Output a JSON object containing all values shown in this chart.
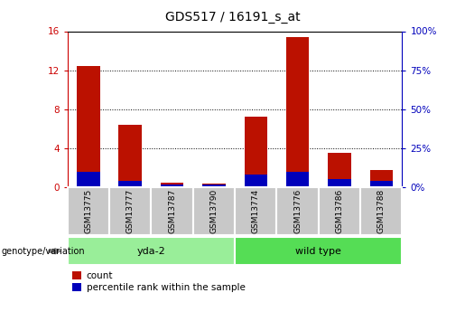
{
  "title": "GDS517 / 16191_s_at",
  "samples": [
    "GSM13775",
    "GSM13777",
    "GSM13787",
    "GSM13790",
    "GSM13774",
    "GSM13776",
    "GSM13786",
    "GSM13788"
  ],
  "count_values": [
    12.4,
    6.4,
    0.5,
    0.4,
    7.2,
    15.4,
    3.5,
    1.8
  ],
  "percentile_values": [
    10.0,
    4.0,
    2.0,
    1.5,
    8.0,
    10.0,
    5.0,
    4.0
  ],
  "groups": [
    {
      "label": "yda-2",
      "start": 0,
      "end": 4,
      "color": "#99EE99"
    },
    {
      "label": "wild type",
      "start": 4,
      "end": 8,
      "color": "#55DD55"
    }
  ],
  "bar_width": 0.55,
  "ylim_left": [
    0,
    16
  ],
  "ylim_right": [
    0,
    100
  ],
  "yticks_left": [
    0,
    4,
    8,
    12,
    16
  ],
  "yticks_right": [
    0,
    25,
    50,
    75,
    100
  ],
  "left_color": "#CC0000",
  "right_color": "#0000BB",
  "count_bar_color": "#BB1100",
  "percentile_bar_color": "#0000BB",
  "xlabel_group": "genotype/variation",
  "legend_count": "count",
  "legend_percentile": "percentile rank within the sample",
  "title_fontsize": 10,
  "tick_fontsize": 7.5,
  "sample_fontsize": 6.5,
  "group_fontsize": 8,
  "legend_fontsize": 7.5
}
